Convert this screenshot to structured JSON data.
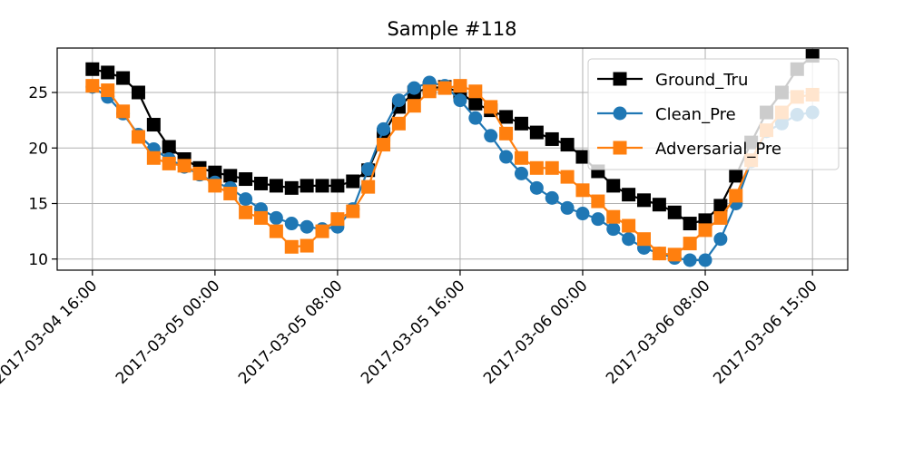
{
  "chart_data": {
    "type": "line",
    "title": "Sample #118",
    "xlabel": "",
    "ylabel": "",
    "x_start": "2017-03-04 16:00",
    "x_step_hours": 1,
    "x_ticks": [
      {
        "label": "2017-03-04 16:00",
        "index": 0
      },
      {
        "label": "2017-03-05 00:00",
        "index": 8
      },
      {
        "label": "2017-03-05 08:00",
        "index": 16
      },
      {
        "label": "2017-03-05 16:00",
        "index": 24
      },
      {
        "label": "2017-03-06 00:00",
        "index": 32
      },
      {
        "label": "2017-03-06 08:00",
        "index": 40
      },
      {
        "label": "2017-03-06 15:00",
        "index": 47
      }
    ],
    "xlim": [
      -2.3,
      49.3
    ],
    "ylim": [
      9,
      29
    ],
    "y_ticks": [
      10,
      15,
      20,
      25
    ],
    "grid": true,
    "legend_position": "top-right",
    "series": [
      {
        "name": "Ground_Tru",
        "color": "#000000",
        "marker": "square",
        "values": [
          27.1,
          26.8,
          26.3,
          25.0,
          22.1,
          20.1,
          19.0,
          18.2,
          17.8,
          17.5,
          17.2,
          16.8,
          16.6,
          16.4,
          16.6,
          16.6,
          16.6,
          17.0,
          18.0,
          21.2,
          23.7,
          25.0,
          25.4,
          25.5,
          25.0,
          24.0,
          23.4,
          22.8,
          22.2,
          21.4,
          20.8,
          20.3,
          19.2,
          17.9,
          16.6,
          15.8,
          15.3,
          14.9,
          14.2,
          13.2,
          13.5,
          14.8,
          17.5,
          20.5,
          23.2,
          25.0,
          27.1,
          28.3
        ]
      },
      {
        "name": "Clean_Pre",
        "color": "#1f77b4",
        "marker": "circle",
        "values": [
          25.5,
          24.6,
          23.1,
          21.2,
          19.9,
          19.0,
          18.3,
          17.6,
          16.9,
          16.4,
          15.4,
          14.5,
          13.7,
          13.2,
          12.9,
          12.7,
          12.9,
          14.5,
          18.1,
          21.7,
          24.3,
          25.4,
          25.9,
          25.6,
          24.3,
          22.7,
          21.1,
          19.2,
          17.7,
          16.4,
          15.5,
          14.6,
          14.1,
          13.6,
          12.7,
          11.8,
          11.0,
          10.5,
          10.1,
          9.9,
          9.9,
          11.8,
          15.0,
          18.8,
          21.5,
          22.2,
          23.0,
          23.2
        ]
      },
      {
        "name": "Adversarial_Pre",
        "color": "#ff7f0e",
        "marker": "square",
        "values": [
          25.6,
          25.2,
          23.3,
          21.0,
          19.1,
          18.6,
          18.4,
          17.7,
          16.6,
          15.9,
          14.2,
          13.7,
          12.5,
          11.1,
          11.2,
          12.5,
          13.6,
          14.3,
          16.5,
          20.3,
          22.2,
          23.8,
          25.1,
          25.4,
          25.6,
          25.1,
          23.7,
          21.3,
          19.1,
          18.2,
          18.2,
          17.4,
          16.2,
          15.2,
          13.8,
          13.0,
          11.8,
          10.5,
          10.4,
          11.4,
          12.6,
          13.7,
          15.7,
          18.9,
          21.6,
          23.2,
          24.6,
          24.8
        ]
      }
    ]
  }
}
